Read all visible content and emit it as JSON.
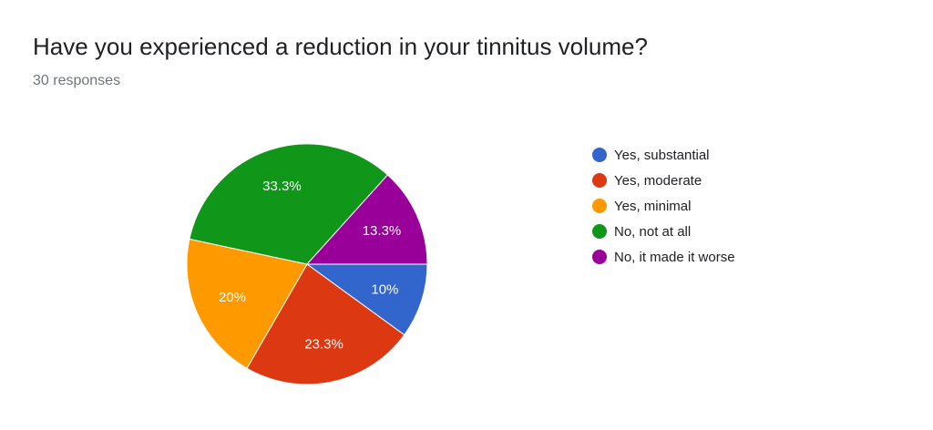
{
  "header": {
    "title": "Have you experienced a reduction in your tinnitus volume?",
    "responses": "30 responses"
  },
  "chart_data": {
    "type": "pie",
    "categories": [
      "Yes, substantial",
      "Yes, moderate",
      "Yes, minimal",
      "No, not at all",
      "No, it made it worse"
    ],
    "values": [
      10,
      23.3,
      20,
      33.3,
      13.3
    ],
    "labels": [
      "10%",
      "23.3%",
      "20%",
      "33.3%",
      "13.3%"
    ],
    "colors": [
      "#3366cc",
      "#dc3912",
      "#ff9900",
      "#109618",
      "#990099"
    ],
    "legend_position": "right"
  }
}
